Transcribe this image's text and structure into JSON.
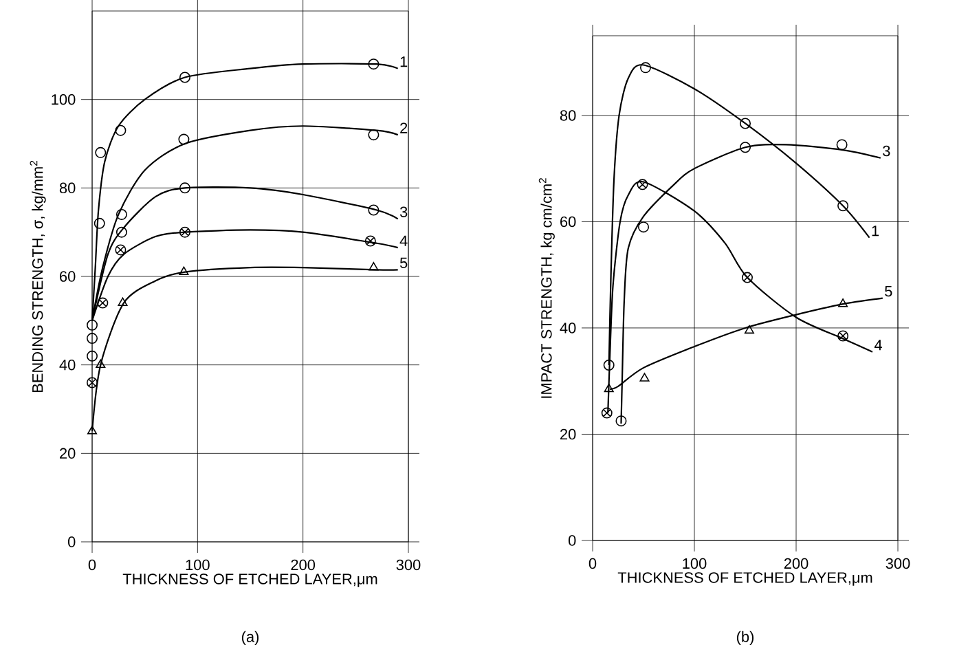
{
  "chart_data": [
    {
      "type": "line",
      "title": "(a)",
      "xlabel": "THICKNESS OF ETCHED LAYER,μm",
      "ylabel": "BENDING STRENGTH, σ, kg/mm$^{2}$",
      "xlim": [
        0,
        300
      ],
      "ylim": [
        0,
        120
      ],
      "xticks": [
        0,
        100,
        200,
        300
      ],
      "yticks": [
        0,
        20,
        40,
        60,
        80,
        100
      ],
      "grid": true,
      "series": [
        {
          "type": "scatter",
          "marker": "circle",
          "color": "#000000",
          "x": [
            0,
            7,
            8,
            27,
            88,
            267
          ],
          "values": [
            49,
            72,
            88,
            93,
            105,
            108
          ]
        },
        {
          "type": "scatter",
          "marker": "circle",
          "color": "#000000",
          "x": [
            0,
            28,
            87,
            267
          ],
          "values": [
            46,
            74,
            91,
            92
          ]
        },
        {
          "type": "scatter",
          "marker": "circle",
          "color": "#000000",
          "x": [
            0,
            28,
            88,
            267
          ],
          "values": [
            42,
            70,
            80,
            75
          ]
        },
        {
          "type": "scatter",
          "marker": "cross",
          "color": "#000000",
          "x": [
            0,
            10,
            27,
            88,
            264
          ],
          "values": [
            36,
            54,
            66,
            70,
            68
          ]
        },
        {
          "type": "scatter",
          "marker": "triangle",
          "color": "#000000",
          "x": [
            0,
            8,
            29,
            87,
            267
          ],
          "values": [
            25,
            40,
            54,
            61,
            62
          ]
        },
        {
          "name": "1",
          "color": "#000000",
          "x": [
            0,
            3,
            6,
            12,
            25,
            50,
            88,
            150,
            200,
            270,
            290
          ],
          "values": [
            50,
            62,
            75,
            86,
            94,
            100,
            105,
            107,
            108,
            108,
            107
          ]
        },
        {
          "name": "2",
          "color": "#000000",
          "x": [
            0,
            10,
            25,
            50,
            88,
            150,
            200,
            270,
            290
          ],
          "values": [
            50,
            62,
            74,
            84,
            90,
            93,
            94,
            93,
            92
          ]
        },
        {
          "name": "3",
          "color": "#000000",
          "x": [
            0,
            15,
            30,
            60,
            88,
            150,
            200,
            270,
            290
          ],
          "values": [
            50,
            65,
            71,
            78,
            80,
            80,
            78.5,
            75,
            73
          ]
        },
        {
          "name": "4",
          "color": "#000000",
          "x": [
            0,
            15,
            30,
            60,
            88,
            150,
            200,
            270,
            290
          ],
          "values": [
            50,
            60,
            65,
            69,
            70,
            70.5,
            70,
            67.5,
            66.5
          ]
        },
        {
          "name": "5",
          "color": "#000000",
          "x": [
            0,
            8,
            30,
            60,
            88,
            150,
            200,
            270,
            290
          ],
          "values": [
            25,
            40,
            54,
            59,
            61,
            62,
            62,
            61.5,
            61.5
          ]
        }
      ]
    },
    {
      "type": "line",
      "title": "(b)",
      "xlabel": "THICKNESS OF ETCHED LAYER,μm",
      "ylabel": "IMPACT STRENGTH, kg cm/cm$^{2}$",
      "xlim": [
        0,
        300
      ],
      "ylim": [
        0,
        95
      ],
      "xticks": [
        0,
        100,
        200,
        300
      ],
      "yticks": [
        0,
        20,
        40,
        60,
        80
      ],
      "grid": true,
      "series": [
        {
          "type": "scatter",
          "marker": "circle",
          "color": "#000000",
          "x": [
            16,
            52,
            150,
            246
          ],
          "values": [
            33,
            89,
            78.5,
            63
          ]
        },
        {
          "type": "scatter",
          "marker": "circle",
          "color": "#000000",
          "x": [
            28,
            50,
            150,
            245
          ],
          "values": [
            22.5,
            59,
            74,
            74.5
          ]
        },
        {
          "type": "scatter",
          "marker": "cross",
          "color": "#000000",
          "x": [
            14,
            49,
            152,
            246
          ],
          "values": [
            24,
            67,
            49.5,
            38.5
          ]
        },
        {
          "type": "scatter",
          "marker": "triangle",
          "color": "#000000",
          "x": [
            16,
            51,
            154,
            246
          ],
          "values": [
            28.5,
            30.5,
            39.5,
            44.5
          ]
        },
        {
          "name": "1",
          "color": "#000000",
          "x": [
            16,
            18,
            21,
            26,
            35,
            50,
            100,
            150,
            200,
            246,
            272
          ],
          "values": [
            33,
            50,
            68,
            80,
            87,
            89.5,
            85,
            78.5,
            71,
            63,
            57
          ]
        },
        {
          "name": "3",
          "color": "#000000",
          "x": [
            28,
            29,
            31,
            35,
            50,
            80,
            100,
            150,
            190,
            246,
            283
          ],
          "values": [
            22,
            30,
            45,
            55,
            61,
            67,
            70,
            74,
            74.5,
            73.5,
            72
          ]
        },
        {
          "name": "4",
          "color": "#000000",
          "x": [
            15,
            17,
            20,
            27,
            35,
            50,
            100,
            130,
            152,
            200,
            246,
            275
          ],
          "values": [
            24,
            35,
            48,
            60,
            65,
            67.5,
            62,
            56,
            49.5,
            42,
            38,
            35.5
          ]
        },
        {
          "name": "5",
          "color": "#000000",
          "x": [
            17,
            25,
            50,
            100,
            150,
            200,
            246,
            285
          ],
          "values": [
            28.5,
            29,
            32.5,
            36.5,
            40,
            42.5,
            44.5,
            45.6
          ]
        }
      ]
    }
  ]
}
